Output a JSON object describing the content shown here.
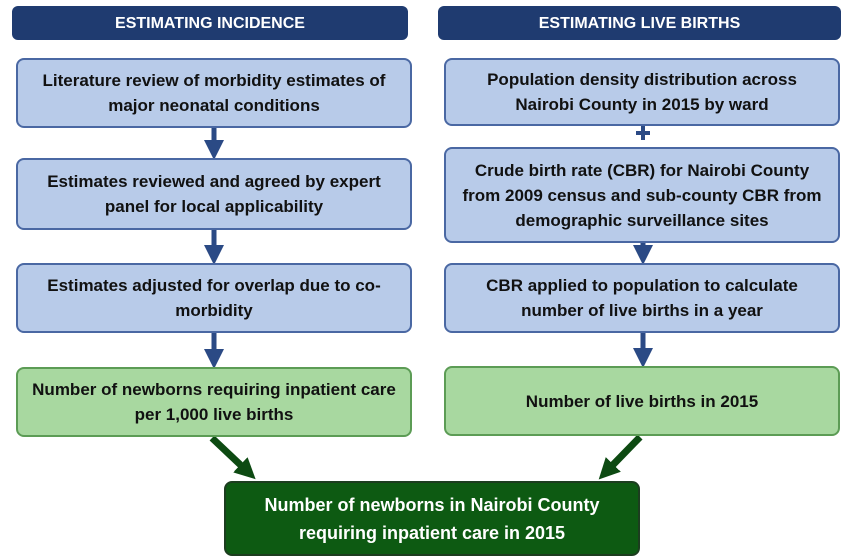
{
  "left": {
    "title": "ESTIMATING INCIDENCE",
    "boxes": [
      "Literature review of morbidity estimates of major neonatal conditions",
      "Estimates reviewed and agreed by expert panel for local applicability",
      "Estimates adjusted for overlap due to co-morbidity",
      "Number of newborns requiring inpatient care per 1,000 live births"
    ]
  },
  "right": {
    "title": "ESTIMATING LIVE BIRTHS",
    "boxes": [
      "Population density distribution across Nairobi County in 2015 by ward",
      "Crude birth rate (CBR) for Nairobi County from 2009 census and sub-county CBR from demographic surveillance sites",
      "CBR applied to population to calculate number of live births in a year",
      "Number of live births in 2015"
    ]
  },
  "result": "Number of newborns in Nairobi County requiring inpatient care in 2015"
}
